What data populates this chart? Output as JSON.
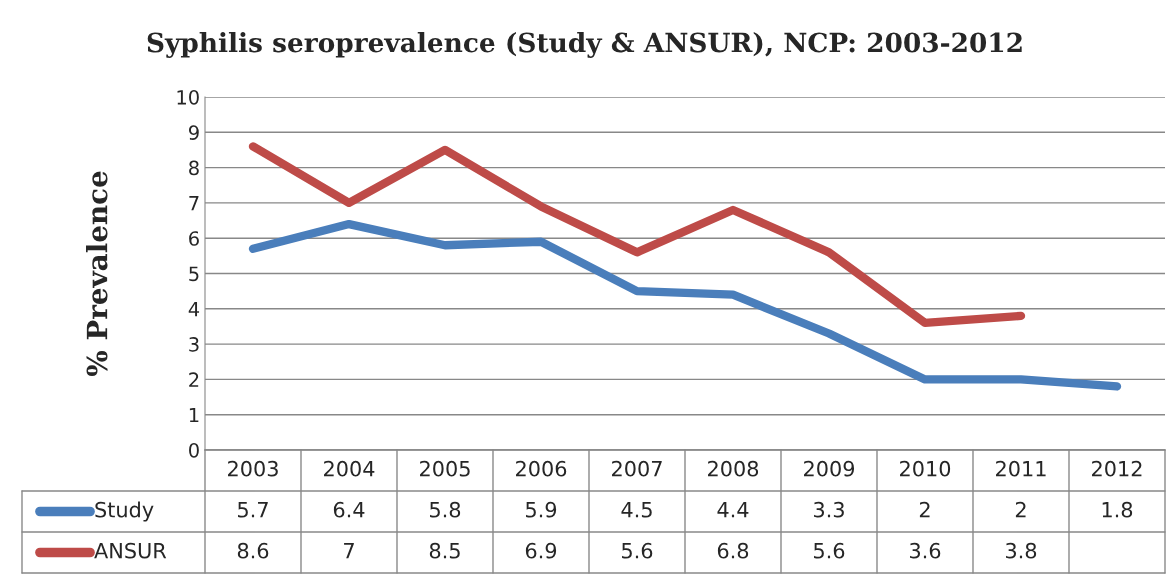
{
  "chart_data": {
    "type": "line",
    "title": "Syphilis seroprevalence (Study & ANSUR), NCP: 2003-2012",
    "ylabel": "% Prevalence",
    "categories": [
      "2003",
      "2004",
      "2005",
      "2006",
      "2007",
      "2008",
      "2009",
      "2010",
      "2011",
      "2012"
    ],
    "series": [
      {
        "name": "Study",
        "color": "#4a7ebb",
        "values": [
          5.7,
          6.4,
          5.8,
          5.9,
          4.5,
          4.4,
          3.3,
          2,
          2,
          1.8
        ]
      },
      {
        "name": "ANSUR",
        "color": "#be4b48",
        "values": [
          8.6,
          7,
          8.5,
          6.9,
          5.6,
          6.8,
          5.6,
          3.6,
          3.8,
          null
        ]
      }
    ],
    "ylim": [
      0,
      10
    ],
    "yticks": [
      0,
      1,
      2,
      3,
      4,
      5,
      6,
      7,
      8,
      9,
      10
    ],
    "grid": "y",
    "legend": "bottom left",
    "data_labels": true,
    "marker": "none",
    "line_style": "solid"
  }
}
